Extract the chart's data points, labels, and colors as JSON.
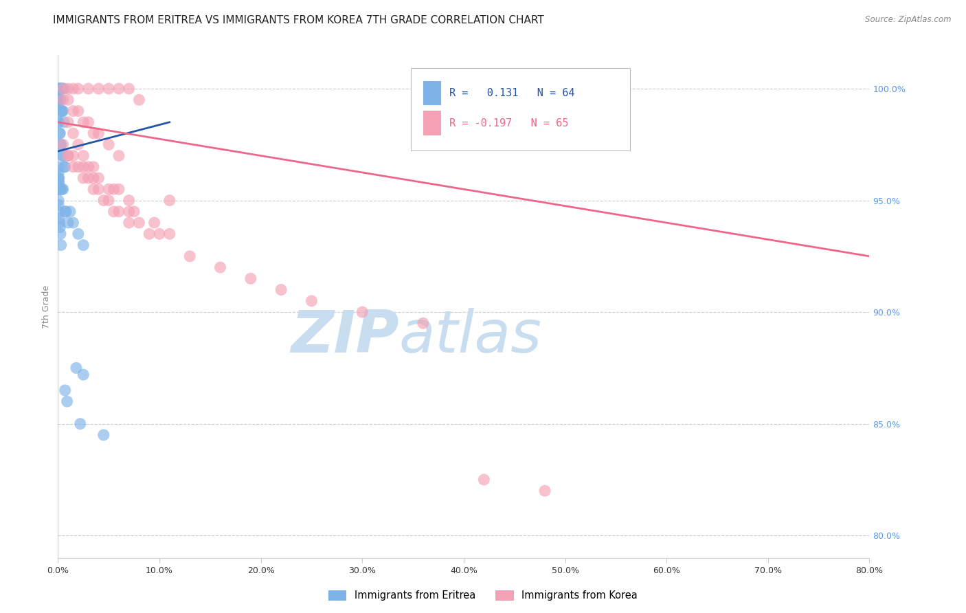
{
  "title": "IMMIGRANTS FROM ERITREA VS IMMIGRANTS FROM KOREA 7TH GRADE CORRELATION CHART",
  "source": "Source: ZipAtlas.com",
  "ylabel": "7th Grade",
  "x_tick_labels": [
    "0.0%",
    "10.0%",
    "20.0%",
    "30.0%",
    "40.0%",
    "50.0%",
    "60.0%",
    "70.0%",
    "80.0%"
  ],
  "x_tick_vals": [
    0,
    10,
    20,
    30,
    40,
    50,
    60,
    70,
    80
  ],
  "y_tick_labels": [
    "80.0%",
    "85.0%",
    "90.0%",
    "95.0%",
    "100.0%"
  ],
  "y_tick_vals": [
    80,
    85,
    90,
    95,
    100
  ],
  "xlim": [
    0,
    80
  ],
  "ylim": [
    79.0,
    101.5
  ],
  "legend_r1": "R =   0.131   N = 64",
  "legend_r2": "R = -0.197   N = 65",
  "legend_label1": "Immigrants from Eritrea",
  "legend_label2": "Immigrants from Korea",
  "blue_color": "#7EB3E8",
  "pink_color": "#F4A0B5",
  "trend_blue": "#2255AA",
  "trend_pink": "#EE6688",
  "watermark_zip": "ZIP",
  "watermark_atlas": "atlas",
  "watermark_color_zip": "#C8DDEF",
  "watermark_color_atlas": "#C8DDEF",
  "title_fontsize": 11,
  "axis_label_fontsize": 9,
  "tick_fontsize": 9,
  "right_tick_color": "#5599EE",
  "eritrea_x": [
    0.05,
    0.1,
    0.15,
    0.2,
    0.25,
    0.3,
    0.35,
    0.4,
    0.5,
    0.6,
    0.05,
    0.1,
    0.15,
    0.2,
    0.25,
    0.3,
    0.35,
    0.4,
    0.5,
    0.6,
    0.05,
    0.1,
    0.15,
    0.2,
    0.25,
    0.3,
    0.4,
    0.5,
    0.6,
    0.7,
    0.05,
    0.05,
    0.05,
    0.05,
    0.05,
    0.1,
    0.1,
    0.1,
    0.15,
    0.2,
    0.3,
    0.4,
    0.5,
    0.7,
    0.8,
    1.0,
    1.2,
    1.5,
    2.0,
    2.5,
    0.05,
    0.05,
    0.1,
    0.1,
    0.15,
    0.2,
    0.25,
    0.3,
    1.8,
    2.5,
    0.7,
    0.9,
    2.2,
    4.5
  ],
  "eritrea_y": [
    100.0,
    100.0,
    100.0,
    100.0,
    100.0,
    100.0,
    100.0,
    100.0,
    100.0,
    100.0,
    99.5,
    99.5,
    99.5,
    99.5,
    99.5,
    99.0,
    99.0,
    99.0,
    99.0,
    98.5,
    98.5,
    98.5,
    98.0,
    98.0,
    97.5,
    97.5,
    97.0,
    97.0,
    96.5,
    96.5,
    96.5,
    96.2,
    96.0,
    95.8,
    95.5,
    96.0,
    95.8,
    95.5,
    95.5,
    95.5,
    95.5,
    95.5,
    95.5,
    94.5,
    94.5,
    94.0,
    94.5,
    94.0,
    93.5,
    93.0,
    95.0,
    94.8,
    94.5,
    94.2,
    94.0,
    93.8,
    93.5,
    93.0,
    87.5,
    87.2,
    86.5,
    86.0,
    85.0,
    84.5
  ],
  "korea_x": [
    0.5,
    1.0,
    1.5,
    2.0,
    3.0,
    4.0,
    5.0,
    6.0,
    7.0,
    8.0,
    0.5,
    1.0,
    1.5,
    2.0,
    2.5,
    3.0,
    3.5,
    4.0,
    5.0,
    6.0,
    1.0,
    1.5,
    2.0,
    2.5,
    3.0,
    3.5,
    4.0,
    5.0,
    6.0,
    7.0,
    0.5,
    1.0,
    1.5,
    2.5,
    3.5,
    4.5,
    5.5,
    7.0,
    9.0,
    11.0,
    1.0,
    2.0,
    3.0,
    4.0,
    5.0,
    6.0,
    7.0,
    8.0,
    9.5,
    11.0,
    1.5,
    2.5,
    3.5,
    5.5,
    7.5,
    10.0,
    13.0,
    16.0,
    19.0,
    22.0,
    25.0,
    30.0,
    36.0,
    42.0,
    48.0
  ],
  "korea_y": [
    100.0,
    100.0,
    100.0,
    100.0,
    100.0,
    100.0,
    100.0,
    100.0,
    100.0,
    99.5,
    99.5,
    99.5,
    99.0,
    99.0,
    98.5,
    98.5,
    98.0,
    98.0,
    97.5,
    97.0,
    98.5,
    98.0,
    97.5,
    97.0,
    96.5,
    96.5,
    96.0,
    95.5,
    95.5,
    95.0,
    97.5,
    97.0,
    96.5,
    96.0,
    95.5,
    95.0,
    94.5,
    94.0,
    93.5,
    93.5,
    97.0,
    96.5,
    96.0,
    95.5,
    95.0,
    94.5,
    94.5,
    94.0,
    94.0,
    95.0,
    97.0,
    96.5,
    96.0,
    95.5,
    94.5,
    93.5,
    92.5,
    92.0,
    91.5,
    91.0,
    90.5,
    90.0,
    89.5,
    82.5,
    82.0
  ],
  "blue_trend_x0": 0,
  "blue_trend_y0": 97.2,
  "blue_trend_x1": 11,
  "blue_trend_y1": 98.5,
  "pink_trend_x0": 0,
  "pink_trend_y0": 98.5,
  "pink_trend_x1": 80,
  "pink_trend_y1": 92.5
}
